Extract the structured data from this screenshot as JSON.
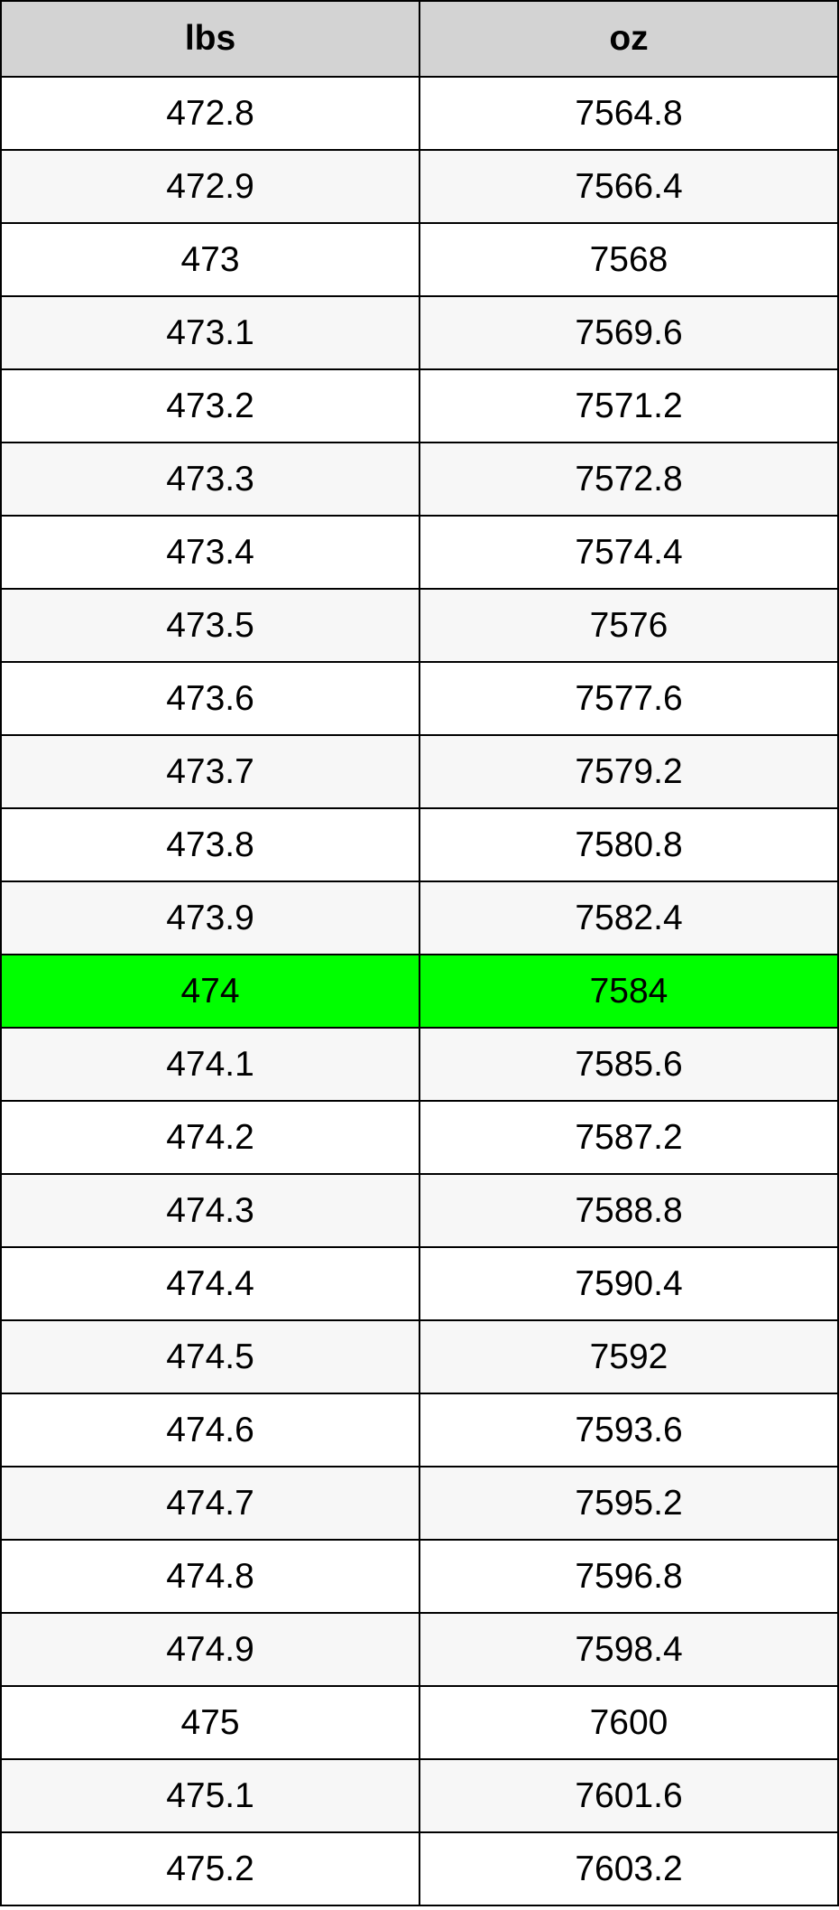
{
  "table": {
    "header": [
      "lbs",
      "oz"
    ],
    "rows": [
      [
        "472.8",
        "7564.8"
      ],
      [
        "472.9",
        "7566.4"
      ],
      [
        "473",
        "7568"
      ],
      [
        "473.1",
        "7569.6"
      ],
      [
        "473.2",
        "7571.2"
      ],
      [
        "473.3",
        "7572.8"
      ],
      [
        "473.4",
        "7574.4"
      ],
      [
        "473.5",
        "7576"
      ],
      [
        "473.6",
        "7577.6"
      ],
      [
        "473.7",
        "7579.2"
      ],
      [
        "473.8",
        "7580.8"
      ],
      [
        "473.9",
        "7582.4"
      ],
      [
        "474",
        "7584"
      ],
      [
        "474.1",
        "7585.6"
      ],
      [
        "474.2",
        "7587.2"
      ],
      [
        "474.3",
        "7588.8"
      ],
      [
        "474.4",
        "7590.4"
      ],
      [
        "474.5",
        "7592"
      ],
      [
        "474.6",
        "7593.6"
      ],
      [
        "474.7",
        "7595.2"
      ],
      [
        "474.8",
        "7596.8"
      ],
      [
        "474.9",
        "7598.4"
      ],
      [
        "475",
        "7600"
      ],
      [
        "475.1",
        "7601.6"
      ],
      [
        "475.2",
        "7603.2"
      ]
    ]
  }
}
